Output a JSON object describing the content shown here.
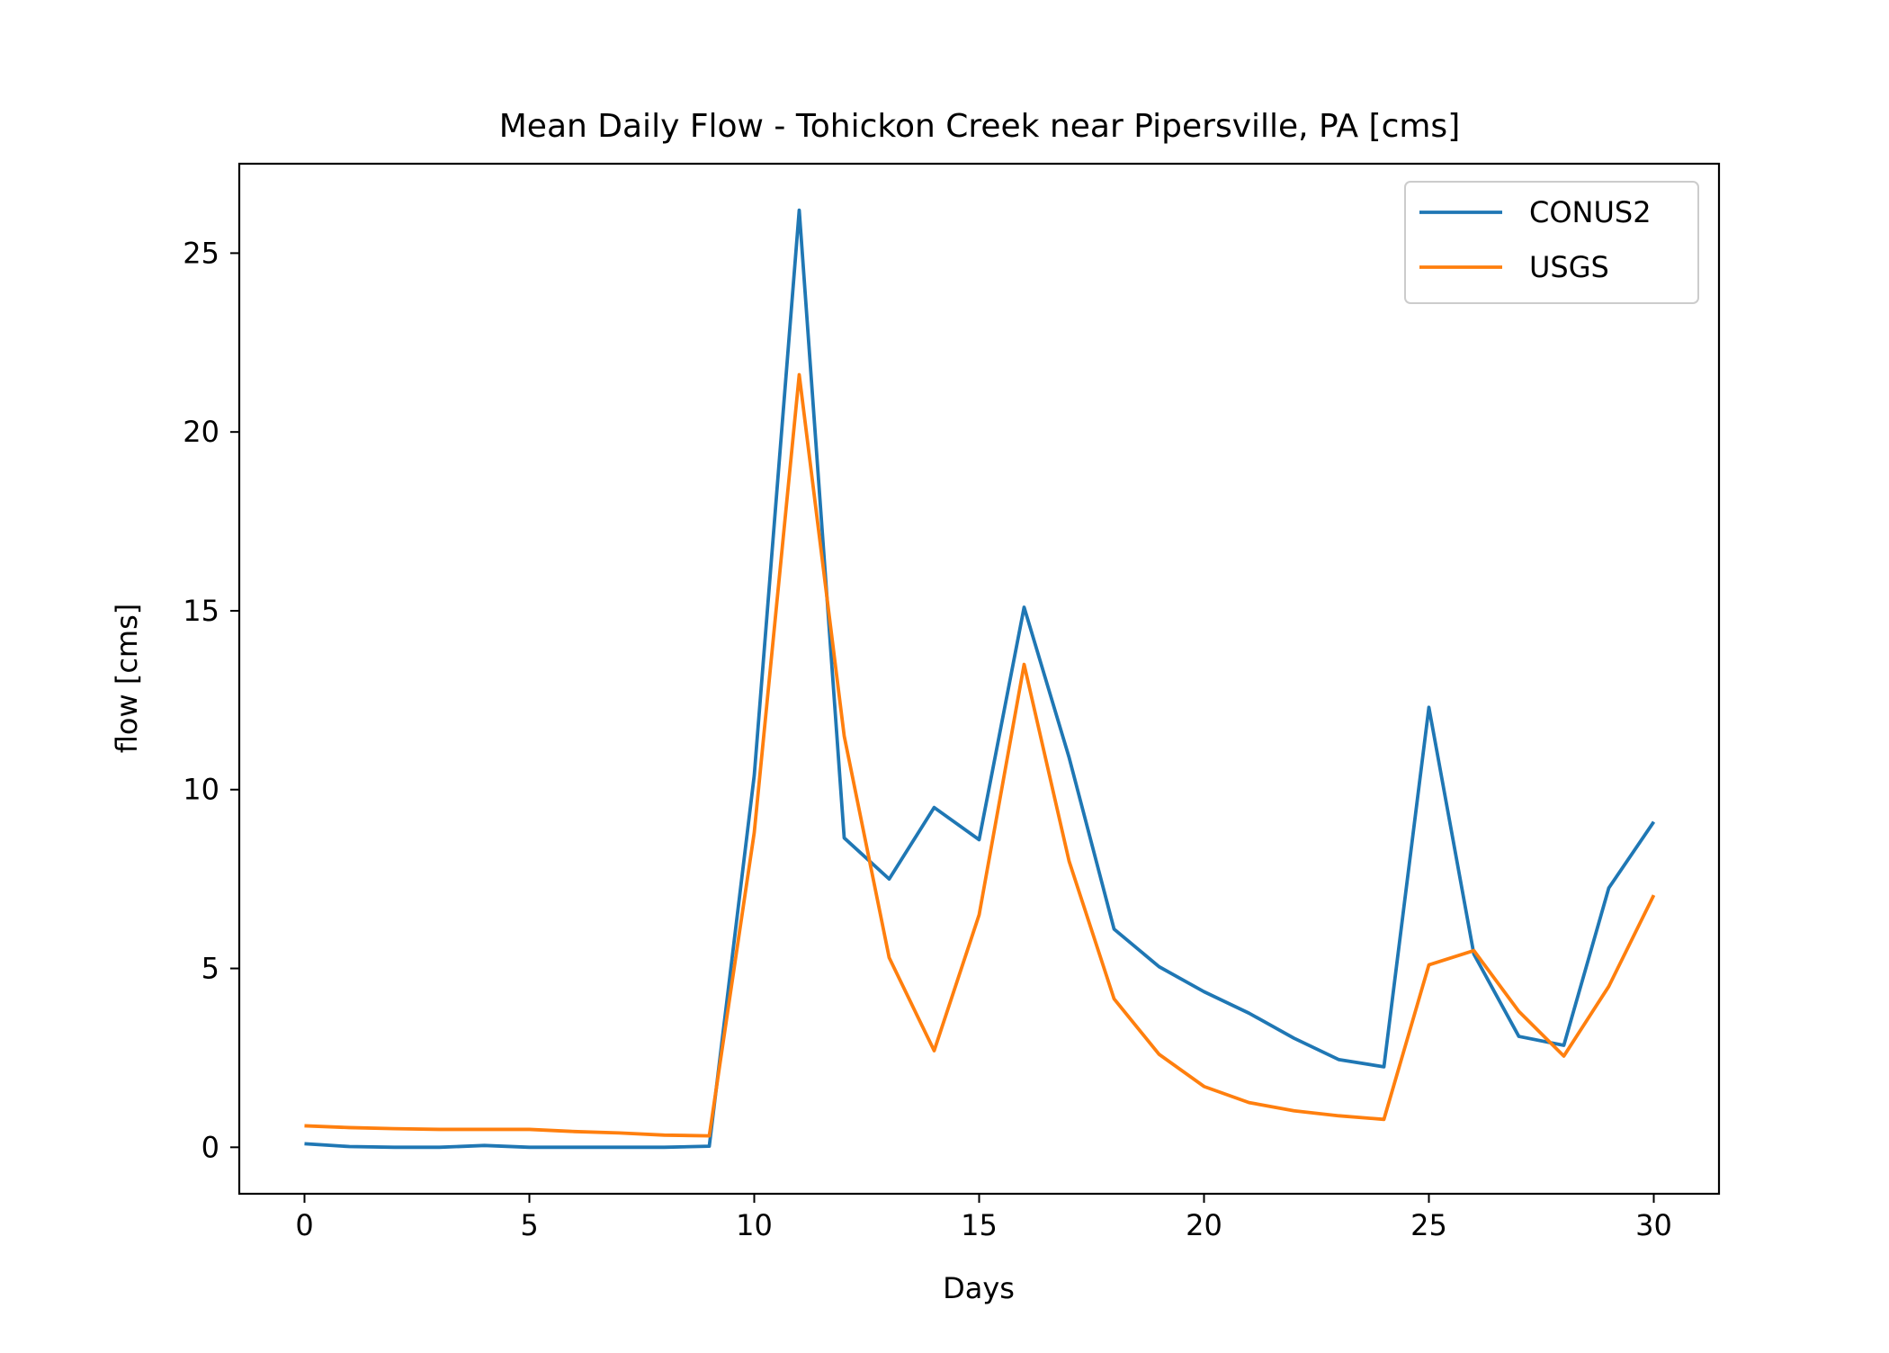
{
  "chart_data": {
    "type": "line",
    "title": "Mean Daily Flow - Tohickon Creek near Pipersville, PA [cms]",
    "xlabel": "Days",
    "ylabel": "flow [cms]",
    "xlim": [
      -1.45,
      31.45
    ],
    "ylim": [
      -1.3,
      27.5
    ],
    "xticks": [
      0,
      5,
      10,
      15,
      20,
      25,
      30
    ],
    "yticks": [
      0,
      5,
      10,
      15,
      20,
      25
    ],
    "grid": false,
    "legend_position": "top-right",
    "x": [
      0,
      1,
      2,
      3,
      4,
      5,
      6,
      7,
      8,
      9,
      10,
      11,
      12,
      13,
      14,
      15,
      16,
      17,
      18,
      19,
      20,
      21,
      22,
      23,
      24,
      25,
      26,
      27,
      28,
      29,
      30
    ],
    "series": [
      {
        "name": "CONUS2",
        "color": "#1f77b4",
        "values": [
          0.1,
          0.02,
          0.0,
          0.0,
          0.05,
          0.0,
          0.0,
          0.0,
          0.0,
          0.03,
          10.4,
          26.2,
          8.65,
          7.5,
          9.5,
          8.6,
          15.1,
          10.9,
          6.1,
          5.05,
          4.35,
          3.75,
          3.05,
          2.45,
          2.25,
          12.3,
          5.4,
          3.1,
          2.85,
          7.25,
          9.1
        ]
      },
      {
        "name": "USGS",
        "color": "#ff7f0e",
        "values": [
          0.6,
          0.55,
          0.52,
          0.5,
          0.5,
          0.5,
          0.44,
          0.4,
          0.34,
          0.32,
          8.8,
          21.6,
          11.5,
          5.3,
          2.7,
          6.5,
          13.5,
          8.0,
          4.15,
          2.6,
          1.7,
          1.25,
          1.02,
          0.88,
          0.78,
          5.1,
          5.5,
          3.8,
          2.55,
          4.5,
          7.05
        ]
      }
    ]
  }
}
